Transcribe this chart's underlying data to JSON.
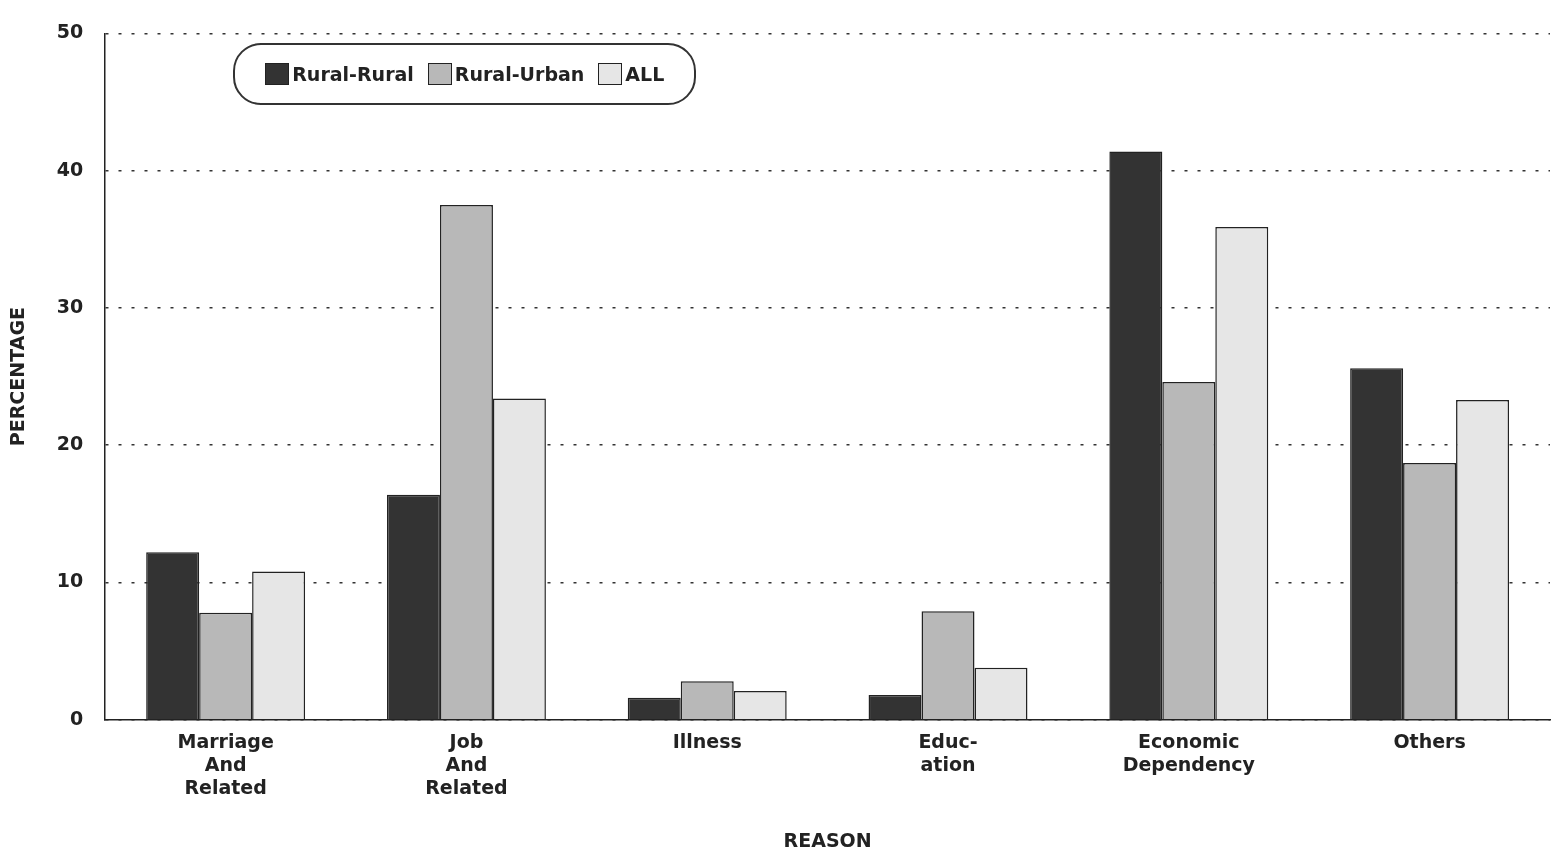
{
  "chart_data": {
    "type": "bar",
    "xlabel": "REASON",
    "ylabel": "PERCENTAGE",
    "categories": [
      "Marriage\nAnd\nRelated",
      "Job\nAnd\nRelated",
      "Illness",
      "Educ-\nation",
      "Economic\nDependency",
      "Others"
    ],
    "series": [
      {
        "name": "Rural-Rural",
        "color": "#333333",
        "values": [
          12.2,
          16.4,
          1.6,
          1.8,
          41.4,
          25.6
        ]
      },
      {
        "name": "Rural-Urban",
        "color": "#b8b8b8",
        "values": [
          7.8,
          37.5,
          2.8,
          7.9,
          24.6,
          18.7
        ]
      },
      {
        "name": "ALL",
        "color": "#e6e6e6",
        "values": [
          10.8,
          23.4,
          2.1,
          3.8,
          35.9,
          23.3
        ]
      }
    ],
    "ylim": [
      0,
      50
    ],
    "yticks": [
      0,
      10,
      20,
      30,
      40,
      50
    ],
    "grid": "y",
    "legend": "top left"
  }
}
